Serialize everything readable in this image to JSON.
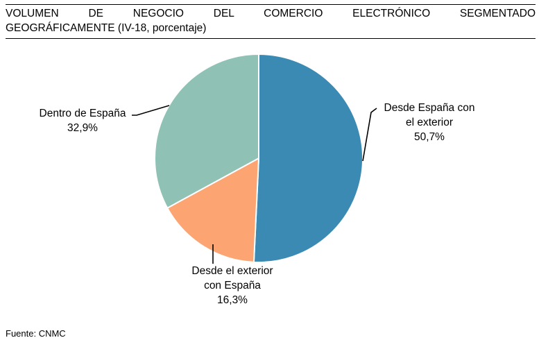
{
  "title": {
    "line1": "VOLUMEN DE NEGOCIO DEL COMERCIO ELECTRÓNICO SEGMENTADO",
    "line2": "GEOGRÁFICAMENTE (IV-18, porcentaje)"
  },
  "source": "Fuente: CNMC",
  "chart_data": {
    "type": "pie",
    "title": "VOLUMEN DE NEGOCIO DEL COMERCIO ELECTRÓNICO SEGMENTADO GEOGRÁFICAMENTE (IV-18, porcentaje)",
    "slices": [
      {
        "label_lines": [
          "Desde España con",
          "el exterior"
        ],
        "value": 50.7,
        "value_label": "50,7%",
        "color": "#3a8ab3"
      },
      {
        "label_lines": [
          "Desde el exterior",
          "con España"
        ],
        "value": 16.3,
        "value_label": "16,3%",
        "color": "#fca573"
      },
      {
        "label_lines": [
          "Dentro de España"
        ],
        "value": 32.9,
        "value_label": "32,9%",
        "color": "#8fc2b5"
      }
    ],
    "start": "12 o'clock",
    "direction": "clockwise"
  }
}
